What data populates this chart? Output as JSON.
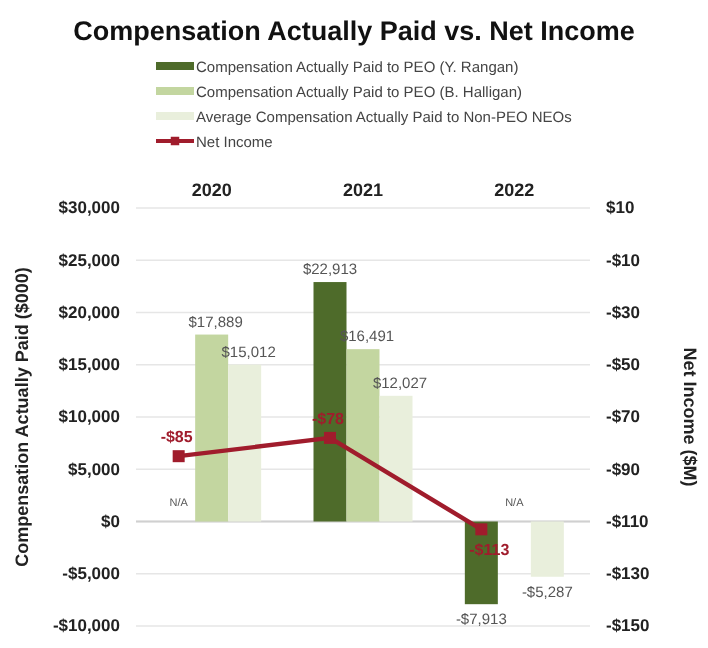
{
  "chart_data": {
    "type": "bar",
    "title": "Compensation Actually Paid vs. Net Income",
    "ylabel": "Compensation Actually Paid ($000)",
    "y2label": "Net Income ($M)",
    "categories": [
      "2020",
      "2021",
      "2022"
    ],
    "series": [
      {
        "name": "Compensation Actually Paid to PEO (Y. Rangan)",
        "color": "#4e6b2a",
        "values": [
          null,
          22913,
          -7913
        ],
        "value_labels": [
          "N/A",
          "$22,913",
          "-$7,913"
        ]
      },
      {
        "name": "Compensation Actually Paid to PEO (B. Halligan)",
        "color": "#c3d6a0",
        "values": [
          17889,
          16491,
          null
        ],
        "value_labels": [
          "$17,889",
          "$16,491",
          "N/A"
        ]
      },
      {
        "name": "Average Compensation Actually Paid to Non-PEO NEOs",
        "color": "#e9efdc",
        "values": [
          15012,
          12027,
          -5287
        ],
        "value_labels": [
          "$15,012",
          "$12,027",
          "-$5,287"
        ]
      },
      {
        "name": "Net Income",
        "type": "line",
        "axis": "y2",
        "color": "#a01c2c",
        "marker": "square",
        "values": [
          -85,
          -78,
          -113
        ],
        "value_labels": [
          "-$85",
          "-$78",
          "-$113"
        ]
      }
    ],
    "ylim": [
      -10000,
      30000
    ],
    "yticks": [
      {
        "value": -10000,
        "label": "-$10,000"
      },
      {
        "value": -5000,
        "label": "-$5,000"
      },
      {
        "value": 0,
        "label": "$0"
      },
      {
        "value": 5000,
        "label": "$5,000"
      },
      {
        "value": 10000,
        "label": "$10,000"
      },
      {
        "value": 15000,
        "label": "$15,000"
      },
      {
        "value": 20000,
        "label": "$20,000"
      },
      {
        "value": 25000,
        "label": "$25,000"
      },
      {
        "value": 30000,
        "label": "$30,000"
      }
    ],
    "y2lim": [
      -150,
      10
    ],
    "y2ticks": [
      {
        "value": -150,
        "label": "-$150"
      },
      {
        "value": -130,
        "label": "-$130"
      },
      {
        "value": -110,
        "label": "-$110"
      },
      {
        "value": -90,
        "label": "-$90"
      },
      {
        "value": -70,
        "label": "-$70"
      },
      {
        "value": -50,
        "label": "-$50"
      },
      {
        "value": -30,
        "label": "-$30"
      },
      {
        "value": -10,
        "label": "-$10"
      },
      {
        "value": 10,
        "label": "$10"
      }
    ],
    "grid": "y",
    "legend": "top"
  }
}
